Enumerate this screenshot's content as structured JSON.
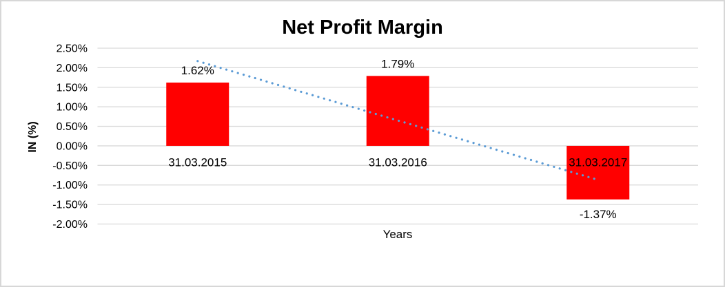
{
  "chart_data": {
    "type": "bar",
    "title": "Net Profit Margin",
    "xlabel": "Years",
    "ylabel": "IN (%)",
    "categories": [
      "31.03.2015",
      "31.03.2016",
      "31.03.2017"
    ],
    "values": [
      1.62,
      1.79,
      -1.37
    ],
    "data_labels": [
      "1.62%",
      "1.79%",
      "-1.37%"
    ],
    "ylim": [
      -2.0,
      2.5
    ],
    "ytick_step": 0.5,
    "ytick_labels": [
      "2.50%",
      "2.00%",
      "1.50%",
      "1.00%",
      "0.50%",
      "0.00%",
      "-0.50%",
      "-1.00%",
      "-1.50%",
      "-2.00%"
    ],
    "grid": true,
    "legend": false,
    "trendline": {
      "style": "dotted",
      "start_value": 2.17,
      "end_value": -0.87
    },
    "colors": {
      "bar": "#FF0000",
      "gridline": "#D9D9D9",
      "trendline": "#5B9BD5",
      "text": "#000000",
      "frame_border": "#D7D7D7"
    }
  }
}
